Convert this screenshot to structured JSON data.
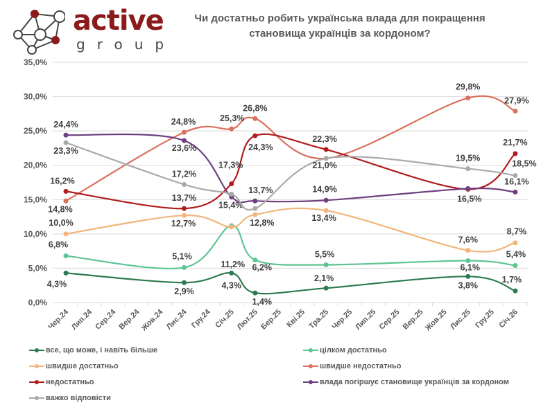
{
  "logo": {
    "text": "active",
    "subtext": "group"
  },
  "chart_data": {
    "type": "line",
    "title": "Чи достатньо робить українська влада для покращення становища українців за кордоном?",
    "xlabel": "",
    "ylabel": "",
    "ylim": [
      0,
      35
    ],
    "yticks": [
      "0,0%",
      "5,0%",
      "10,0%",
      "15,0%",
      "20,0%",
      "25,0%",
      "30,0%",
      "35,0%"
    ],
    "grid": true,
    "legend_position": "bottom",
    "categories": [
      "Чер.24",
      "Лип.24",
      "Сер.24",
      "Вер.24",
      "Жов.24",
      "Лис.24",
      "Гру.24",
      "Січ.25",
      "Лют.25",
      "Бер.25",
      "Кві.25",
      "Тра.25",
      "Чер.25",
      "Лип.25",
      "Сер.25",
      "Вер.25",
      "Жов.25",
      "Лис.25",
      "Гру.25",
      "Січ.26"
    ],
    "x": [
      "Чер.24",
      "Лис.24",
      "Січ.25",
      "Лют.25",
      "Тра.25",
      "Лис.25",
      "Січ.26"
    ],
    "series": [
      {
        "name": "все, що може, і навіть більше",
        "color": "#2e7a4f",
        "values": [
          4.3,
          2.9,
          4.3,
          1.4,
          2.1,
          3.8,
          1.7
        ],
        "labels": [
          "4,3%",
          "2,9%",
          "4,3%",
          "1,4%",
          "2,1%",
          "3,8%",
          "1,7%"
        ]
      },
      {
        "name": "цілком достатньо",
        "color": "#5cc593",
        "values": [
          6.8,
          5.1,
          11.2,
          6.2,
          5.5,
          6.1,
          5.4
        ],
        "labels": [
          "6,8%",
          "5,1%",
          "11,2%",
          "6,2%",
          "5,5%",
          "6,1%",
          "5,4%"
        ]
      },
      {
        "name": "швидше достатньо",
        "color": "#f2b57a",
        "values": [
          10.0,
          12.7,
          11.0,
          12.8,
          13.4,
          7.6,
          8.7
        ],
        "labels": [
          "10,0%",
          "12,7%",
          null,
          "12,8%",
          "13,4%",
          "7,6%",
          "8,7%"
        ]
      },
      {
        "name": "швидше недостатньо",
        "color": "#d9705b",
        "values": [
          14.8,
          24.8,
          25.3,
          26.8,
          21.0,
          29.8,
          27.9
        ],
        "labels": [
          "14,8%",
          "24,8%",
          "25,3%",
          "26,8%",
          null,
          "29,8%",
          "27,9%"
        ]
      },
      {
        "name": "недостатньо",
        "color": "#b01c1c",
        "values": [
          16.2,
          13.7,
          17.3,
          24.3,
          22.3,
          16.5,
          21.7
        ],
        "labels": [
          "16,2%",
          "13,7%",
          "17,3%",
          "24,3%",
          "22,3%",
          "16,5%",
          "21,7%"
        ]
      },
      {
        "name": "влада погіршує становище українців за кордоном",
        "color": "#6e3f7f",
        "values": [
          24.4,
          23.6,
          15.4,
          14.8,
          14.9,
          16.6,
          16.1
        ],
        "labels": [
          "24,4%",
          "23,6%",
          "15,4%",
          null,
          "14,9%",
          null,
          "16,1%"
        ]
      },
      {
        "name": "важко відповісти",
        "color": "#aaaaaa",
        "values": [
          23.3,
          17.2,
          15.8,
          13.7,
          21.0,
          19.5,
          18.5
        ],
        "labels": [
          "23,3%",
          "17,2%",
          null,
          "13,7%",
          "21,0%",
          "19,5%",
          "18,5%"
        ]
      }
    ]
  }
}
